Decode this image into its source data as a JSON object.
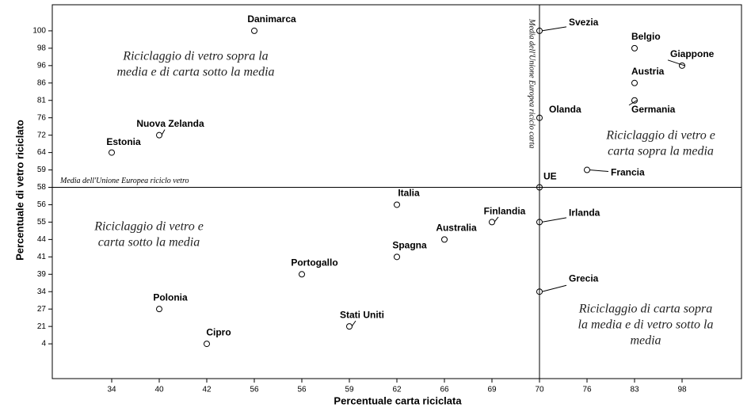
{
  "chart_data": {
    "type": "scatter",
    "x_label": "Percentuale carta riciclata",
    "y_label": "Percentuale di vetro riciclato",
    "xlim": [
      -0.25,
      14.25
    ],
    "ylim": [
      -1,
      20.5
    ],
    "xticks": [
      {
        "value": 1,
        "label": "34"
      },
      {
        "value": 2,
        "label": "40"
      },
      {
        "value": 3,
        "label": "42"
      },
      {
        "value": 4,
        "label": "56"
      },
      {
        "value": 5,
        "label": "56"
      },
      {
        "value": 6,
        "label": "59"
      },
      {
        "value": 7,
        "label": "62"
      },
      {
        "value": 8,
        "label": "66"
      },
      {
        "value": 9,
        "label": "69"
      },
      {
        "value": 10,
        "label": "70"
      },
      {
        "value": 11,
        "label": "76"
      },
      {
        "value": 12,
        "label": "83"
      },
      {
        "value": 13,
        "label": "98"
      }
    ],
    "yticks": [
      {
        "value": 1,
        "label": "4"
      },
      {
        "value": 2,
        "label": "21"
      },
      {
        "value": 3,
        "label": "27"
      },
      {
        "value": 4,
        "label": "34"
      },
      {
        "value": 5,
        "label": "39"
      },
      {
        "value": 6,
        "label": "41"
      },
      {
        "value": 7,
        "label": "44"
      },
      {
        "value": 8,
        "label": "55"
      },
      {
        "value": 9,
        "label": "56"
      },
      {
        "value": 10,
        "label": "58"
      },
      {
        "value": 11,
        "label": "59"
      },
      {
        "value": 12,
        "label": "64"
      },
      {
        "value": 13,
        "label": "72"
      },
      {
        "value": 14,
        "label": "76"
      },
      {
        "value": 15,
        "label": "81"
      },
      {
        "value": 16,
        "label": "86"
      },
      {
        "value": 17,
        "label": "96"
      },
      {
        "value": 18,
        "label": "98"
      },
      {
        "value": 19,
        "label": "100"
      }
    ],
    "points": [
      {
        "name": "Danimarca",
        "x": 4,
        "y": 19
      },
      {
        "name": "Estonia",
        "x": 1,
        "y": 12
      },
      {
        "name": "Nuova Zelanda",
        "x": 2,
        "y": 13
      },
      {
        "name": "Svezia",
        "x": 10,
        "y": 19
      },
      {
        "name": "Belgio",
        "x": 12,
        "y": 18
      },
      {
        "name": "Giappone",
        "x": 13,
        "y": 17
      },
      {
        "name": "Austria",
        "x": 12,
        "y": 16
      },
      {
        "name": "Germania",
        "x": 12,
        "y": 15
      },
      {
        "name": "Olanda",
        "x": 10,
        "y": 14
      },
      {
        "name": "Francia",
        "x": 11,
        "y": 11
      },
      {
        "name": "UE",
        "x": 10,
        "y": 10
      },
      {
        "name": "Italia",
        "x": 7,
        "y": 9
      },
      {
        "name": "Finlandia",
        "x": 9,
        "y": 8
      },
      {
        "name": "Irlanda",
        "x": 10,
        "y": 8
      },
      {
        "name": "Australia",
        "x": 8,
        "y": 7
      },
      {
        "name": "Spagna",
        "x": 7,
        "y": 6
      },
      {
        "name": "Portogallo",
        "x": 5,
        "y": 5
      },
      {
        "name": "Grecia",
        "x": 10,
        "y": 4
      },
      {
        "name": "Polonia",
        "x": 2,
        "y": 3
      },
      {
        "name": "Stati Uniti",
        "x": 6,
        "y": 2
      },
      {
        "name": "Cipro",
        "x": 3,
        "y": 1
      }
    ],
    "ref_x": 10,
    "ref_y": 10,
    "ref_x_label": "Media dell'Unione Europea riciclo carta",
    "ref_y_label": "Media dell'Unione Europea riciclo vetro",
    "quadrant_labels": [
      [
        "Riciclaggio di vetro sopra la",
        "media e  di carta sotto la media"
      ],
      [
        "Riciclaggio di vetro e",
        "carta sopra la media"
      ],
      [
        "Riciclaggio di vetro e",
        "carta sotto la media"
      ],
      [
        "Riciclaggio di carta sopra",
        "la media e di vetro sotto la",
        "media"
      ]
    ]
  }
}
